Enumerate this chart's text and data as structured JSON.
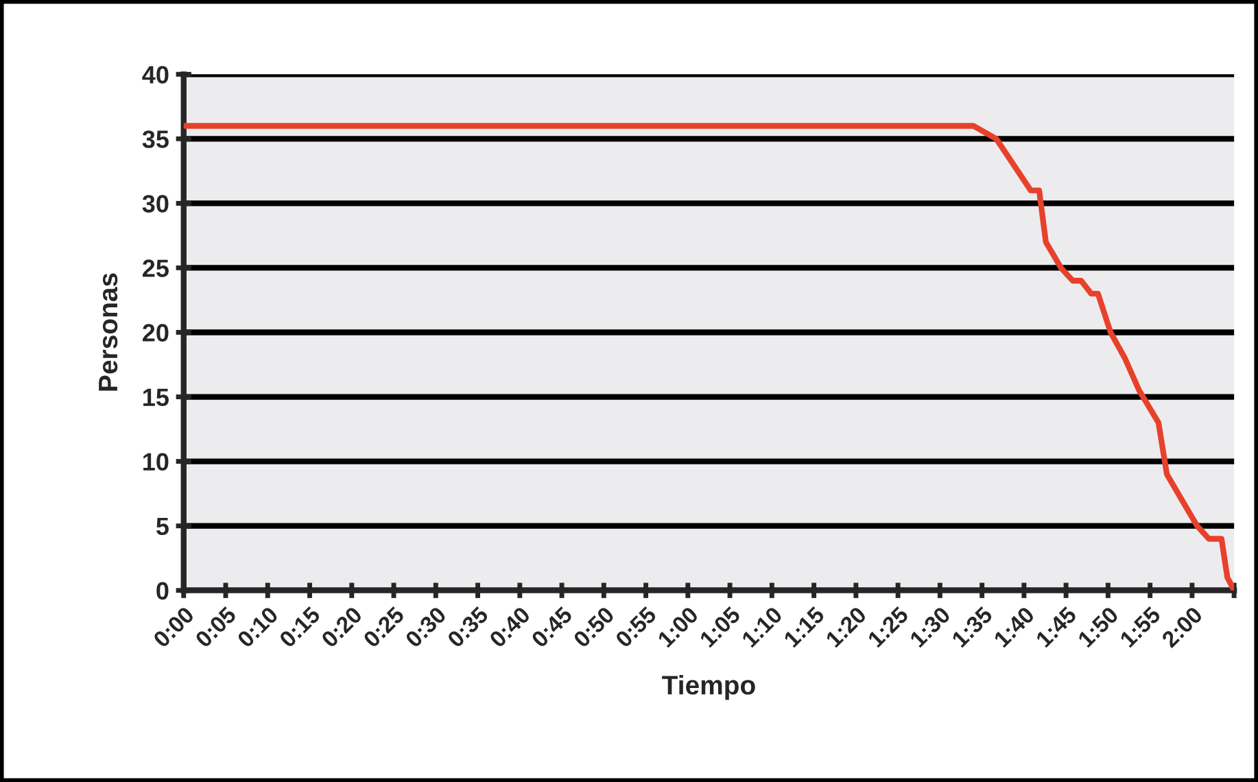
{
  "chart_data": {
    "type": "line",
    "xlabel": "Tiempo",
    "ylabel": "Personas",
    "x": [
      0,
      94,
      96.7,
      100.8,
      101.8,
      102.6,
      104.4,
      105.8,
      106.8,
      108,
      108.8,
      110.3,
      112,
      113.7,
      116,
      117,
      118.8,
      120.6,
      122,
      123.5,
      124.2,
      125
    ],
    "series": [
      {
        "color": "#e8412b",
        "values": [
          36,
          36,
          35,
          31,
          31,
          27,
          25,
          24,
          24,
          23,
          23,
          20,
          18,
          15.5,
          13,
          9,
          7,
          5,
          4,
          4,
          1,
          0
        ]
      }
    ],
    "xlim": [
      0,
      125
    ],
    "xticks": [
      {
        "value": 0,
        "label": "0:00"
      },
      {
        "value": 5,
        "label": "0:05"
      },
      {
        "value": 10,
        "label": "0:10"
      },
      {
        "value": 15,
        "label": "0:15"
      },
      {
        "value": 20,
        "label": "0:20"
      },
      {
        "value": 25,
        "label": "0:25"
      },
      {
        "value": 30,
        "label": "0:30"
      },
      {
        "value": 35,
        "label": "0:35"
      },
      {
        "value": 40,
        "label": "0:40"
      },
      {
        "value": 45,
        "label": "0:45"
      },
      {
        "value": 50,
        "label": "0:50"
      },
      {
        "value": 55,
        "label": "0:55"
      },
      {
        "value": 60,
        "label": "1:00"
      },
      {
        "value": 65,
        "label": "1:05"
      },
      {
        "value": 70,
        "label": "1:10"
      },
      {
        "value": 75,
        "label": "1:15"
      },
      {
        "value": 80,
        "label": "1:20"
      },
      {
        "value": 85,
        "label": "1:25"
      },
      {
        "value": 90,
        "label": "1:30"
      },
      {
        "value": 95,
        "label": "1:35"
      },
      {
        "value": 100,
        "label": "1:40"
      },
      {
        "value": 105,
        "label": "1:45"
      },
      {
        "value": 110,
        "label": "1:50"
      },
      {
        "value": 115,
        "label": "1:55"
      },
      {
        "value": 120,
        "label": "2:00"
      },
      {
        "value": 125,
        "label": null
      }
    ],
    "ylim": [
      0,
      40
    ],
    "yticks": [
      0,
      5,
      10,
      15,
      20,
      25,
      30,
      35,
      40
    ],
    "grid": "y",
    "legend": false,
    "marker": "none",
    "line_style": "solid"
  }
}
